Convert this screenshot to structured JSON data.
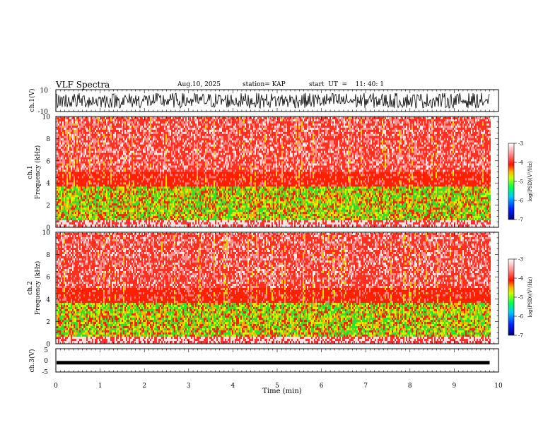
{
  "header": {
    "title": "VLF Spectra",
    "date": "Aug.10, 2025",
    "station": "station= KAP",
    "start": "start  UT  =    11: 40: 1"
  },
  "chart_data": [
    {
      "type": "line",
      "name": "ch1-waveform",
      "ylabel": "ch.1(V)",
      "ylim": [
        -10,
        10
      ],
      "yticks": [
        "10",
        "-10"
      ],
      "description_of_series": "noisy waveform, mostly between -8 and 8 V over 0-9.8 min"
    },
    {
      "type": "heatmap",
      "name": "ch1-spectrogram",
      "ylabel": "Frequency (kHz)",
      "channel_label": "ch.1",
      "ylim": [
        0,
        10
      ],
      "yticks": [
        "0",
        "2",
        "4",
        "6",
        "8",
        "10"
      ],
      "xlim": [
        0,
        10
      ],
      "data_end_min": 9.8,
      "colorbar": {
        "label": "log(PSD)(V²/Hz)",
        "range": [
          -7,
          -3
        ],
        "ticks": [
          "-3",
          "-4",
          "-5",
          "-6",
          "-7"
        ]
      }
    },
    {
      "type": "heatmap",
      "name": "ch2-spectrogram",
      "ylabel": "Frequency (kHz)",
      "channel_label": "ch.2",
      "ylim": [
        0,
        10
      ],
      "yticks": [
        "0",
        "2",
        "4",
        "6",
        "8",
        "10"
      ],
      "xlim": [
        0,
        10
      ],
      "data_end_min": 9.8,
      "colorbar": {
        "label": "log(PSD)(V²/Hz)",
        "range": [
          -7,
          -3
        ],
        "ticks": [
          "-3",
          "-4",
          "-5",
          "-6",
          "-7"
        ]
      }
    },
    {
      "type": "line",
      "name": "ch3-waveform",
      "ylabel": "ch.3(V)",
      "ylim": [
        -5,
        5
      ],
      "yticks": [
        "5",
        "0",
        "-5"
      ],
      "level": -1
    }
  ],
  "xaxis": {
    "label": "Time  (min)",
    "range": [
      0,
      10
    ],
    "ticks": [
      "0",
      "1",
      "2",
      "3",
      "4",
      "5",
      "6",
      "7",
      "8",
      "9",
      "10"
    ]
  },
  "colors": {
    "colormap": [
      "#00008b",
      "#0030ff",
      "#00c8ff",
      "#00ff40",
      "#c8ff00",
      "#ffc000",
      "#ff2000",
      "#ffffff"
    ]
  }
}
